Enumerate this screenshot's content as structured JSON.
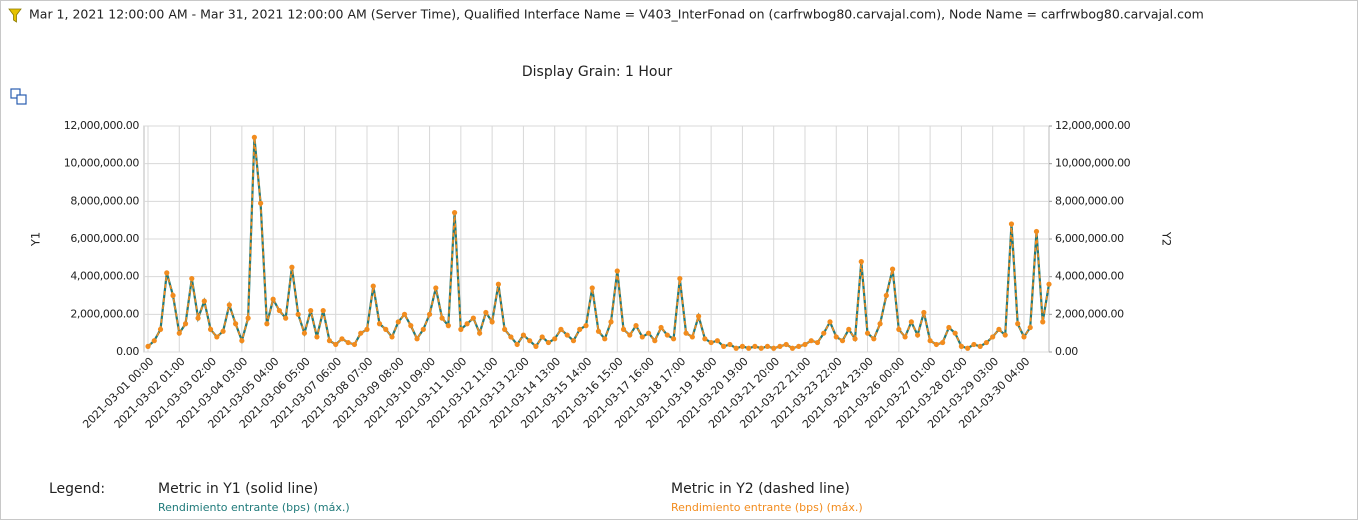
{
  "header": {
    "filter": "Mar 1, 2021 12:00:00 AM - Mar 31, 2021 12:00:00 AM (Server Time), Qualified Interface Name = V403_InterFonad on (carfrwbog80.carvajal.com), Node Name = carfrwbog80.carvajal.com"
  },
  "chart_data": {
    "type": "line",
    "title": "Display Grain: 1 Hour",
    "y_label": "Y1",
    "y2_label": "Y2",
    "legend_title": "Legend:",
    "categories": [
      "2021-03-01 00:00",
      null,
      null,
      null,
      null,
      "2021-03-02 01:00",
      null,
      null,
      null,
      null,
      "2021-03-03 02:00",
      null,
      null,
      null,
      null,
      "2021-03-04 03:00",
      null,
      null,
      null,
      null,
      "2021-03-05 04:00",
      null,
      null,
      null,
      null,
      "2021-03-06 05:00",
      null,
      null,
      null,
      null,
      "2021-03-07 06:00",
      null,
      null,
      null,
      null,
      "2021-03-08 07:00",
      null,
      null,
      null,
      null,
      "2021-03-09 08:00",
      null,
      null,
      null,
      null,
      "2021-03-10 09:00",
      null,
      null,
      null,
      null,
      "2021-03-11 10:00",
      null,
      null,
      null,
      null,
      "2021-03-12 11:00",
      null,
      null,
      null,
      null,
      "2021-03-13 12:00",
      null,
      null,
      null,
      null,
      "2021-03-14 13:00",
      null,
      null,
      null,
      null,
      "2021-03-15 14:00",
      null,
      null,
      null,
      null,
      "2021-03-16 15:00",
      null,
      null,
      null,
      null,
      "2021-03-17 16:00",
      null,
      null,
      null,
      null,
      "2021-03-18 17:00",
      null,
      null,
      null,
      null,
      "2021-03-19 18:00",
      null,
      null,
      null,
      null,
      "2021-03-20 19:00",
      null,
      null,
      null,
      null,
      "2021-03-21 20:00",
      null,
      null,
      null,
      null,
      "2021-03-22 21:00",
      null,
      null,
      null,
      null,
      "2021-03-23 22:00",
      null,
      null,
      null,
      null,
      "2021-03-24 23:00",
      null,
      null,
      null,
      null,
      "2021-03-26 00:00",
      null,
      null,
      null,
      null,
      "2021-03-27 01:00",
      null,
      null,
      null,
      null,
      "2021-03-28 02:00",
      null,
      null,
      null,
      null,
      "2021-03-29 03:00",
      null,
      null,
      null,
      null,
      "2021-03-30 04:00",
      null,
      null,
      null,
      null
    ],
    "series": [
      {
        "name": "Rendimiento entrante (bps) (máx.)",
        "group_label": "Metric in Y1 (solid line)",
        "color": "#1f7a7a",
        "dashed": false,
        "axis": "y",
        "values": [
          300000,
          600000,
          1200000,
          4200000,
          3000000,
          1000000,
          1500000,
          3900000,
          1800000,
          2700000,
          1200000,
          800000,
          1100000,
          2500000,
          1500000,
          600000,
          1800000,
          11400000,
          7900000,
          1500000,
          2800000,
          2200000,
          1800000,
          4500000,
          2000000,
          1000000,
          2200000,
          800000,
          2200000,
          600000,
          400000,
          700000,
          500000,
          400000,
          1000000,
          1200000,
          3500000,
          1500000,
          1200000,
          800000,
          1600000,
          2000000,
          1400000,
          700000,
          1200000,
          2000000,
          3400000,
          1800000,
          1400000,
          7400000,
          1200000,
          1500000,
          1800000,
          1000000,
          2100000,
          1600000,
          3600000,
          1200000,
          800000,
          400000,
          900000,
          600000,
          300000,
          800000,
          500000,
          700000,
          1200000,
          900000,
          600000,
          1200000,
          1400000,
          3400000,
          1100000,
          700000,
          1600000,
          4300000,
          1200000,
          900000,
          1400000,
          800000,
          1000000,
          600000,
          1300000,
          900000,
          700000,
          3900000,
          1000000,
          800000,
          1900000,
          700000,
          500000,
          600000,
          300000,
          400000,
          200000,
          300000,
          200000,
          300000,
          200000,
          300000,
          200000,
          300000,
          400000,
          200000,
          300000,
          400000,
          600000,
          500000,
          1000000,
          1600000,
          800000,
          600000,
          1200000,
          700000,
          4800000,
          1000000,
          700000,
          1500000,
          3000000,
          4400000,
          1200000,
          800000,
          1600000,
          900000,
          2100000,
          600000,
          400000,
          500000,
          1300000,
          1000000,
          300000,
          200000,
          400000,
          300000,
          500000,
          800000,
          1200000,
          900000,
          6800000,
          1500000,
          800000,
          1300000,
          6400000,
          1600000,
          3600000
        ]
      },
      {
        "name": "Rendimiento entrante (bps) (máx.)",
        "group_label": "Metric in Y2 (dashed line)",
        "color": "#f28c1e",
        "dashed": true,
        "axis": "y2",
        "values": [
          300000,
          600000,
          1200000,
          4200000,
          3000000,
          1000000,
          1500000,
          3900000,
          1800000,
          2700000,
          1200000,
          800000,
          1100000,
          2500000,
          1500000,
          600000,
          1800000,
          11400000,
          7900000,
          1500000,
          2800000,
          2200000,
          1800000,
          4500000,
          2000000,
          1000000,
          2200000,
          800000,
          2200000,
          600000,
          400000,
          700000,
          500000,
          400000,
          1000000,
          1200000,
          3500000,
          1500000,
          1200000,
          800000,
          1600000,
          2000000,
          1400000,
          700000,
          1200000,
          2000000,
          3400000,
          1800000,
          1400000,
          7400000,
          1200000,
          1500000,
          1800000,
          1000000,
          2100000,
          1600000,
          3600000,
          1200000,
          800000,
          400000,
          900000,
          600000,
          300000,
          800000,
          500000,
          700000,
          1200000,
          900000,
          600000,
          1200000,
          1400000,
          3400000,
          1100000,
          700000,
          1600000,
          4300000,
          1200000,
          900000,
          1400000,
          800000,
          1000000,
          600000,
          1300000,
          900000,
          700000,
          3900000,
          1000000,
          800000,
          1900000,
          700000,
          500000,
          600000,
          300000,
          400000,
          200000,
          300000,
          200000,
          300000,
          200000,
          300000,
          200000,
          300000,
          400000,
          200000,
          300000,
          400000,
          600000,
          500000,
          1000000,
          1600000,
          800000,
          600000,
          1200000,
          700000,
          4800000,
          1000000,
          700000,
          1500000,
          3000000,
          4400000,
          1200000,
          800000,
          1600000,
          900000,
          2100000,
          600000,
          400000,
          500000,
          1300000,
          1000000,
          300000,
          200000,
          400000,
          300000,
          500000,
          800000,
          1200000,
          900000,
          6800000,
          1500000,
          800000,
          1300000,
          6400000,
          1600000,
          3600000
        ]
      }
    ],
    "ylim": [
      0,
      12000000
    ],
    "yticks": [
      {
        "value": 0,
        "label": "0.00"
      },
      {
        "value": 2000000,
        "label": "2,000,000.00"
      },
      {
        "value": 4000000,
        "label": "4,000,000.00"
      },
      {
        "value": 6000000,
        "label": "6,000,000.00"
      },
      {
        "value": 8000000,
        "label": "8,000,000.00"
      },
      {
        "value": 10000000,
        "label": "10,000,000.00"
      },
      {
        "value": 12000000,
        "label": "12,000,000.00"
      }
    ],
    "y2lim": [
      0,
      12000000
    ],
    "y2ticks": [
      {
        "value": 0,
        "label": "0.00"
      },
      {
        "value": 2000000,
        "label": "2,000,000.00"
      },
      {
        "value": 4000000,
        "label": "4,000,000.00"
      },
      {
        "value": 6000000,
        "label": "6,000,000.00"
      },
      {
        "value": 8000000,
        "label": "8,000,000.00"
      },
      {
        "value": 10000000,
        "label": "10,000,000.00"
      },
      {
        "value": 12000000,
        "label": "12,000,000.00"
      }
    ],
    "grid": true
  }
}
